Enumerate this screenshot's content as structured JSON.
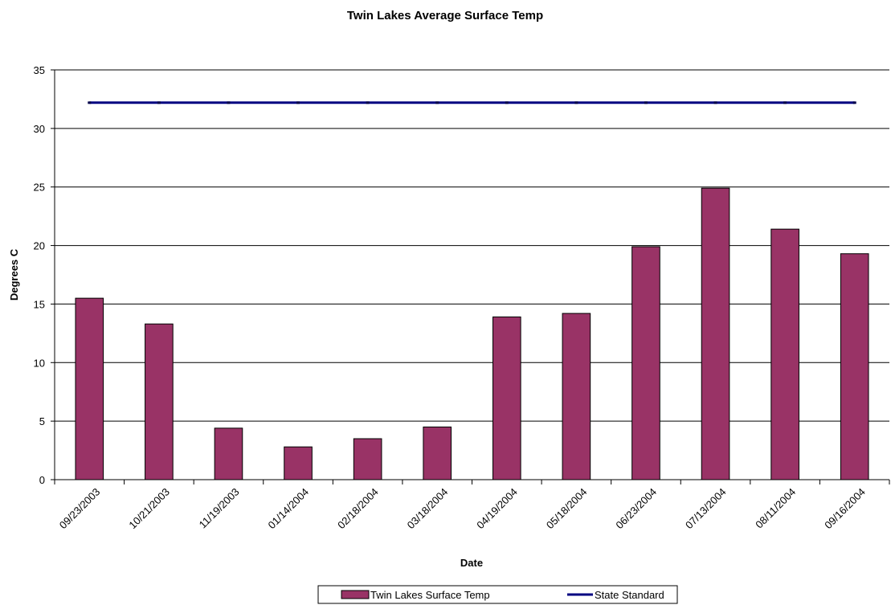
{
  "chart_data": {
    "type": "bar",
    "title": "Twin Lakes Average Surface Temp",
    "xlabel": "Date",
    "ylabel": "Degrees C",
    "ylim": [
      0,
      35
    ],
    "yticks": [
      0,
      5,
      10,
      15,
      20,
      25,
      30,
      35
    ],
    "grid": true,
    "legend_position": "bottom",
    "categories": [
      "09/23/2003",
      "10/21/2003",
      "11/19/2003",
      "01/14/2004",
      "02/18/2004",
      "03/18/2004",
      "04/19/2004",
      "05/18/2004",
      "06/23/2004",
      "07/13/2004",
      "08/11/2004",
      "09/16/2004"
    ],
    "series": [
      {
        "name": "Twin Lakes Surface Temp",
        "type": "bar",
        "color": "#993366",
        "values": [
          15.5,
          13.3,
          4.4,
          2.8,
          3.5,
          4.5,
          13.9,
          14.2,
          19.9,
          24.9,
          21.4,
          19.3
        ]
      },
      {
        "name": "State Standard",
        "type": "line",
        "color": "#000080",
        "values": [
          32.2,
          32.2,
          32.2,
          32.2,
          32.2,
          32.2,
          32.2,
          32.2,
          32.2,
          32.2,
          32.2,
          32.2
        ]
      }
    ]
  }
}
